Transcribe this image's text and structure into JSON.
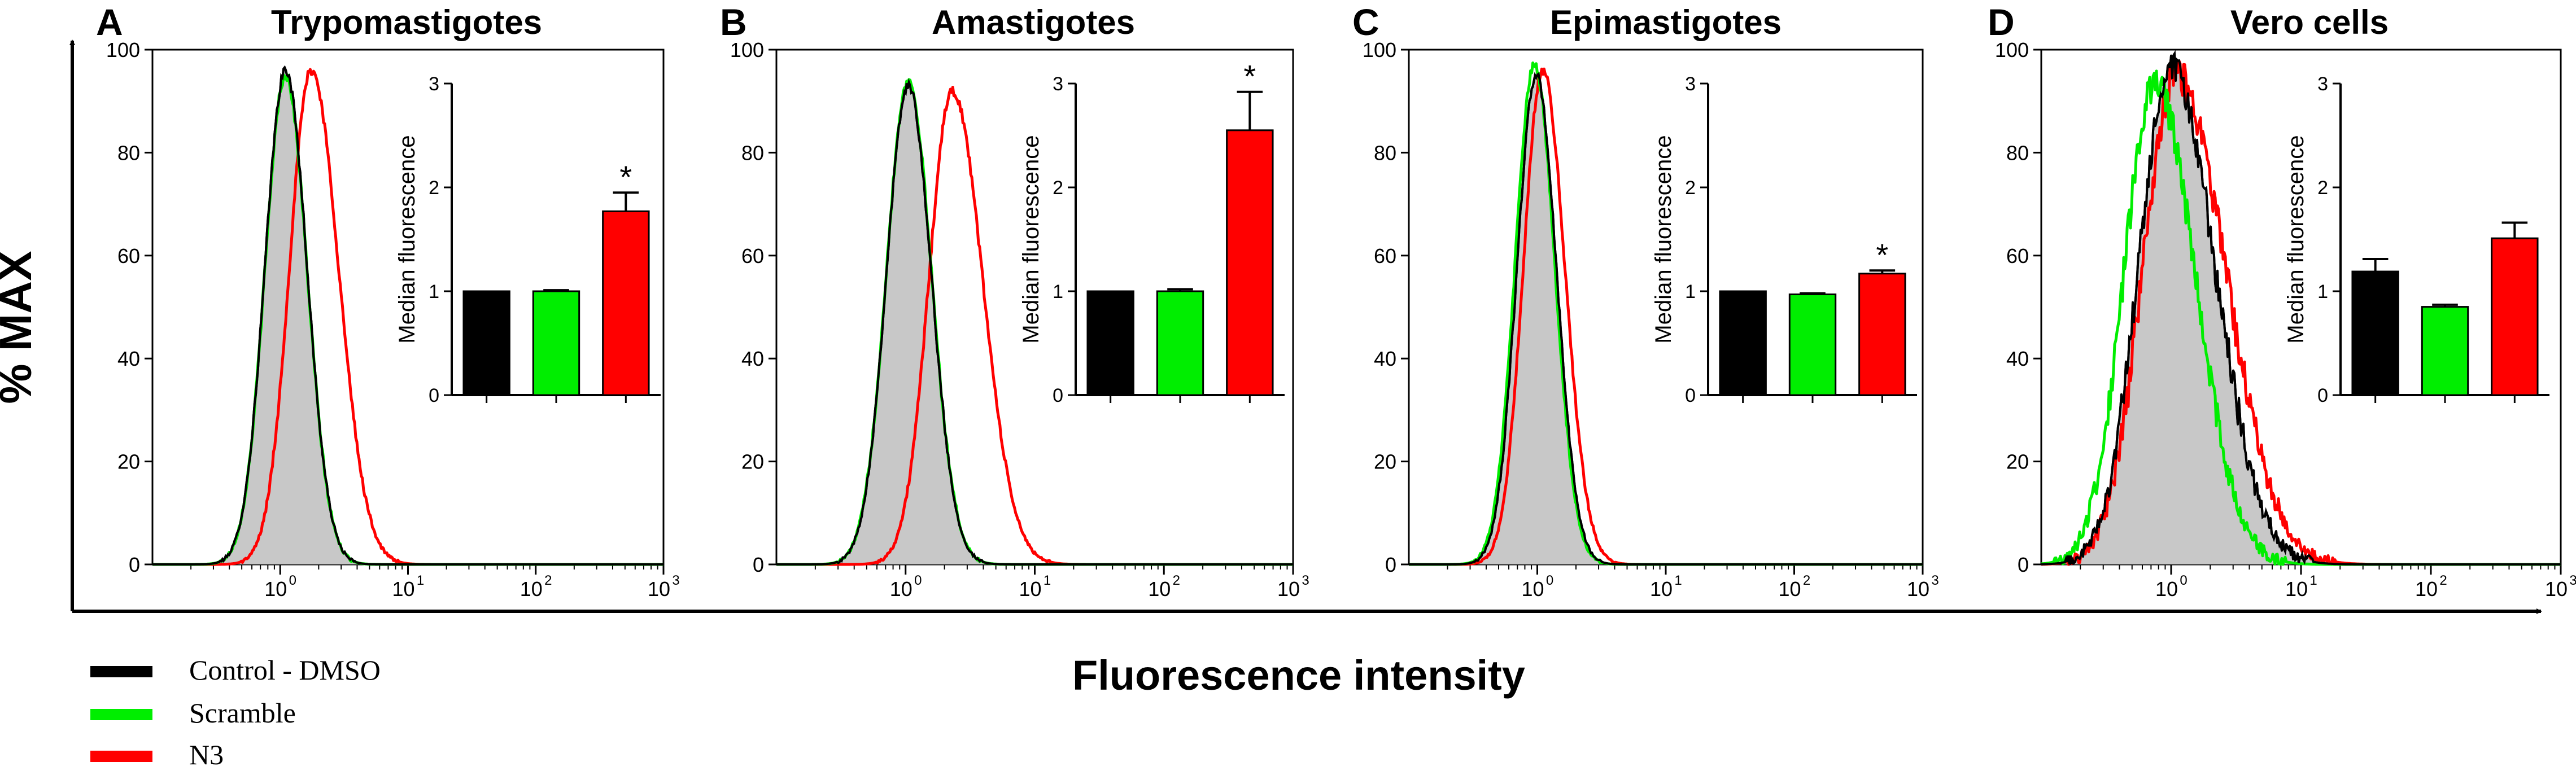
{
  "colors": {
    "control": "#000000",
    "scramble": "#00ee00",
    "n3": "#ff0000",
    "fill": "#c8c8c8"
  },
  "figure": {
    "ylabel": "% MAX",
    "xlabel": "Fluorescence intensity"
  },
  "legend": [
    {
      "label": "Control - DMSO",
      "color": "#000000"
    },
    {
      "label": "Scramble",
      "color": "#00ee00"
    },
    {
      "label": "N3",
      "color": "#ff0000"
    }
  ],
  "chart_data": [
    {
      "panel": "A",
      "title": "Trypomastigotes",
      "type": "line",
      "x_scale": "log",
      "xlim": [
        0.1,
        1000
      ],
      "ylim": [
        0,
        100
      ],
      "xticks": [
        {
          "v": 1,
          "label": "10",
          "exp": "0"
        },
        {
          "v": 10,
          "label": "10",
          "exp": "1"
        },
        {
          "v": 100,
          "label": "10",
          "exp": "2"
        },
        {
          "v": 1000,
          "label": "10",
          "exp": "3"
        }
      ],
      "yticks": [
        0,
        20,
        40,
        60,
        80,
        100
      ],
      "series": [
        {
          "name": "Control - DMSO",
          "peak_x": 1.1,
          "peak_y": 96,
          "width": 0.16,
          "skew": 1.05,
          "filled": true
        },
        {
          "name": "Scramble",
          "peak_x": 1.1,
          "peak_y": 95,
          "width": 0.16,
          "skew": 1.05
        },
        {
          "name": "N3",
          "peak_x": 1.75,
          "peak_y": 96,
          "width": 0.17,
          "skew": 1.25
        }
      ],
      "inset": {
        "type": "bar",
        "ylabel": "Median fluorescence",
        "ylim": [
          0,
          3
        ],
        "yticks": [
          0,
          1,
          2,
          3
        ],
        "categories": [
          "Control - DMSO",
          "Scramble",
          "N3"
        ],
        "values": [
          1.0,
          1.0,
          1.77
        ],
        "errors": [
          0,
          0.01,
          0.18
        ],
        "significance": [
          "",
          "",
          "*"
        ]
      }
    },
    {
      "panel": "B",
      "title": "Amastigotes",
      "type": "line",
      "x_scale": "log",
      "xlim": [
        0.1,
        1000
      ],
      "ylim": [
        0,
        100
      ],
      "xticks": [
        {
          "v": 1,
          "label": "10",
          "exp": "0"
        },
        {
          "v": 10,
          "label": "10",
          "exp": "1"
        },
        {
          "v": 100,
          "label": "10",
          "exp": "2"
        },
        {
          "v": 1000,
          "label": "10",
          "exp": "3"
        }
      ],
      "yticks": [
        0,
        20,
        40,
        60,
        80,
        100
      ],
      "series": [
        {
          "name": "Control - DMSO",
          "peak_x": 1.05,
          "peak_y": 93,
          "width": 0.17,
          "skew": 1.05,
          "filled": true
        },
        {
          "name": "Scramble",
          "peak_x": 1.05,
          "peak_y": 94,
          "width": 0.17,
          "skew": 1.05
        },
        {
          "name": "N3",
          "peak_x": 2.3,
          "peak_y": 92,
          "width": 0.18,
          "skew": 1.3
        }
      ],
      "inset": {
        "type": "bar",
        "ylabel": "Median fluorescence",
        "ylim": [
          0,
          3
        ],
        "yticks": [
          0,
          1,
          2,
          3
        ],
        "categories": [
          "Control - DMSO",
          "Scramble",
          "N3"
        ],
        "values": [
          1.0,
          1.0,
          2.55
        ],
        "errors": [
          0,
          0.02,
          0.37
        ],
        "significance": [
          "",
          "",
          "*"
        ]
      }
    },
    {
      "panel": "C",
      "title": "Epimastigotes",
      "type": "line",
      "x_scale": "log",
      "xlim": [
        0.1,
        1000
      ],
      "ylim": [
        0,
        100
      ],
      "xticks": [
        {
          "v": 1,
          "label": "10",
          "exp": "0"
        },
        {
          "v": 10,
          "label": "10",
          "exp": "1"
        },
        {
          "v": 100,
          "label": "10",
          "exp": "2"
        },
        {
          "v": 1000,
          "label": "10",
          "exp": "3"
        }
      ],
      "yticks": [
        0,
        20,
        40,
        60,
        80,
        100
      ],
      "series": [
        {
          "name": "Control - DMSO",
          "peak_x": 0.98,
          "peak_y": 95,
          "width": 0.15,
          "skew": 1.05,
          "filled": true
        },
        {
          "name": "Scramble",
          "peak_x": 0.95,
          "peak_y": 97,
          "width": 0.15,
          "skew": 1.05
        },
        {
          "name": "N3",
          "peak_x": 1.1,
          "peak_y": 96,
          "width": 0.15,
          "skew": 1.15
        }
      ],
      "inset": {
        "type": "bar",
        "ylabel": "Median fluorescence",
        "ylim": [
          0,
          3
        ],
        "yticks": [
          0,
          1,
          2,
          3
        ],
        "categories": [
          "Control - DMSO",
          "Scramble",
          "N3"
        ],
        "values": [
          1.0,
          0.97,
          1.17
        ],
        "errors": [
          0,
          0.01,
          0.03
        ],
        "significance": [
          "",
          "",
          "*"
        ]
      }
    },
    {
      "panel": "D",
      "title": "Vero cells",
      "type": "line",
      "x_scale": "log",
      "xlim": [
        0.1,
        1000
      ],
      "ylim": [
        0,
        100
      ],
      "xticks": [
        {
          "v": 1,
          "label": "10",
          "exp": "0"
        },
        {
          "v": 10,
          "label": "10",
          "exp": "1"
        },
        {
          "v": 100,
          "label": "10",
          "exp": "2"
        },
        {
          "v": 1000,
          "label": "10",
          "exp": "3"
        }
      ],
      "yticks": [
        0,
        20,
        40,
        60,
        80,
        100
      ],
      "series": [
        {
          "name": "Control - DMSO",
          "peak_x": 1.0,
          "peak_y": 96,
          "width": 0.25,
          "skew": 1.35,
          "filled": true
        },
        {
          "name": "Scramble",
          "peak_x": 0.75,
          "peak_y": 93,
          "width": 0.24,
          "skew": 1.3
        },
        {
          "name": "N3",
          "peak_x": 1.1,
          "peak_y": 95,
          "width": 0.26,
          "skew": 1.45
        }
      ],
      "inset": {
        "type": "bar",
        "ylabel": "Median fluorescence",
        "ylim": [
          0,
          3
        ],
        "yticks": [
          0,
          1,
          2,
          3
        ],
        "categories": [
          "Control - DMSO",
          "Scramble",
          "N3"
        ],
        "values": [
          1.19,
          0.85,
          1.51
        ],
        "errors": [
          0.12,
          0.02,
          0.15
        ],
        "significance": [
          "",
          "",
          ""
        ]
      }
    }
  ]
}
